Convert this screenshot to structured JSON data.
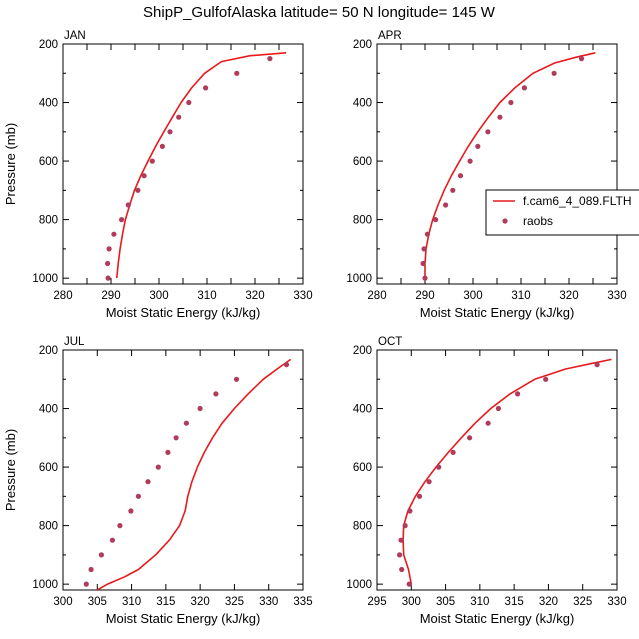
{
  "figure": {
    "title": "ShipP_GulfofAlaska  latitude= 50 N longitude= 145 W",
    "ylabel": "Pressure (mb)",
    "xlabel": "Moist Static Energy (kJ/kg)"
  },
  "colors": {
    "model_line": "#e8191c",
    "obs_dot": "#b13b5a"
  },
  "legend": {
    "model_label": "f.cam6_4_089.FLTH",
    "obs_label": "raobs"
  },
  "chart_data": [
    {
      "type": "line",
      "panel_label": "JAN",
      "xlabel": "Moist Static Energy (kJ/kg)",
      "ylabel": "Pressure (mb)",
      "xlim": [
        280,
        330
      ],
      "ylim": [
        1020,
        200
      ],
      "xticks": [
        280,
        285,
        290,
        295,
        300,
        305,
        310,
        315,
        320,
        325,
        330
      ],
      "xtick_labels": [
        "280",
        "",
        "290",
        "",
        "300",
        "",
        "310",
        "",
        "320",
        "",
        "330"
      ],
      "yticks": [
        200,
        400,
        600,
        800,
        1000
      ],
      "y_minor_step": 100,
      "series": [
        {
          "name": "f.cam6_4_089.FLTH",
          "kind": "line",
          "points": [
            [
              291.2,
              1000
            ],
            [
              291.5,
              950
            ],
            [
              291.9,
              900
            ],
            [
              292.4,
              850
            ],
            [
              293.0,
              800
            ],
            [
              293.9,
              750
            ],
            [
              294.9,
              700
            ],
            [
              296.2,
              650
            ],
            [
              297.7,
              600
            ],
            [
              299.3,
              550
            ],
            [
              301.0,
              500
            ],
            [
              302.8,
              450
            ],
            [
              304.6,
              400
            ],
            [
              306.8,
              350
            ],
            [
              309.5,
              300
            ],
            [
              313.0,
              260
            ],
            [
              319.0,
              240
            ],
            [
              326.5,
              230
            ]
          ]
        },
        {
          "name": "raobs",
          "kind": "scatter",
          "points": [
            [
              289.4,
              1000
            ],
            [
              289.3,
              950
            ],
            [
              289.6,
              900
            ],
            [
              290.6,
              850
            ],
            [
              292.2,
              800
            ],
            [
              293.6,
              750
            ],
            [
              295.6,
              700
            ],
            [
              296.9,
              650
            ],
            [
              298.6,
              600
            ],
            [
              300.7,
              550
            ],
            [
              302.3,
              500
            ],
            [
              304.1,
              450
            ],
            [
              306.2,
              400
            ],
            [
              309.7,
              350
            ],
            [
              316.2,
              300
            ],
            [
              323.1,
              250
            ]
          ]
        }
      ]
    },
    {
      "type": "line",
      "panel_label": "APR",
      "xlabel": "Moist Static Energy (kJ/kg)",
      "ylabel": "",
      "xlim": [
        280,
        330
      ],
      "ylim": [
        1020,
        200
      ],
      "xticks": [
        280,
        285,
        290,
        295,
        300,
        305,
        310,
        315,
        320,
        325,
        330
      ],
      "xtick_labels": [
        "280",
        "",
        "290",
        "",
        "300",
        "",
        "310",
        "",
        "320",
        "",
        "330"
      ],
      "yticks": [
        200,
        400,
        600,
        800,
        1000
      ],
      "y_minor_step": 100,
      "series": [
        {
          "name": "f.cam6_4_089.FLTH",
          "kind": "line",
          "points": [
            [
              290.0,
              1000
            ],
            [
              290.0,
              950
            ],
            [
              290.2,
              900
            ],
            [
              290.8,
              850
            ],
            [
              291.6,
              800
            ],
            [
              292.7,
              750
            ],
            [
              294.0,
              700
            ],
            [
              295.5,
              650
            ],
            [
              297.2,
              600
            ],
            [
              299.0,
              550
            ],
            [
              301.0,
              500
            ],
            [
              303.2,
              450
            ],
            [
              305.6,
              400
            ],
            [
              308.7,
              350
            ],
            [
              312.5,
              300
            ],
            [
              317.0,
              265
            ],
            [
              321.5,
              245
            ],
            [
              325.5,
              230
            ]
          ]
        },
        {
          "name": "raobs",
          "kind": "scatter",
          "points": [
            [
              290.0,
              1000
            ],
            [
              289.6,
              950
            ],
            [
              289.8,
              900
            ],
            [
              290.5,
              850
            ],
            [
              292.2,
              800
            ],
            [
              294.3,
              750
            ],
            [
              295.8,
              700
            ],
            [
              297.4,
              650
            ],
            [
              299.4,
              600
            ],
            [
              301.0,
              550
            ],
            [
              303.1,
              500
            ],
            [
              305.6,
              450
            ],
            [
              307.9,
              400
            ],
            [
              310.7,
              350
            ],
            [
              316.9,
              300
            ],
            [
              322.6,
              250
            ]
          ]
        }
      ]
    },
    {
      "type": "line",
      "panel_label": "JUL",
      "xlabel": "Moist Static Energy (kJ/kg)",
      "ylabel": "Pressure (mb)",
      "xlim": [
        300,
        335
      ],
      "ylim": [
        1020,
        200
      ],
      "xticks": [
        300,
        305,
        310,
        315,
        320,
        325,
        330,
        335
      ],
      "xtick_labels": [
        "300",
        "305",
        "310",
        "315",
        "320",
        "325",
        "330",
        "335"
      ],
      "yticks": [
        200,
        400,
        600,
        800,
        1000
      ],
      "y_minor_step": 100,
      "series": [
        {
          "name": "f.cam6_4_089.FLTH",
          "kind": "line",
          "points": [
            [
              305.0,
              1020
            ],
            [
              306.5,
              1000
            ],
            [
              309.0,
              975
            ],
            [
              311.0,
              950
            ],
            [
              313.5,
              900
            ],
            [
              315.5,
              850
            ],
            [
              317.0,
              800
            ],
            [
              317.8,
              750
            ],
            [
              318.2,
              700
            ],
            [
              318.8,
              650
            ],
            [
              319.6,
              600
            ],
            [
              320.6,
              550
            ],
            [
              321.8,
              500
            ],
            [
              323.2,
              450
            ],
            [
              325.0,
              400
            ],
            [
              327.0,
              350
            ],
            [
              329.2,
              300
            ],
            [
              331.5,
              260
            ],
            [
              333.2,
              232
            ]
          ]
        },
        {
          "name": "raobs",
          "kind": "scatter",
          "points": [
            [
              303.4,
              1000
            ],
            [
              304.1,
              950
            ],
            [
              305.6,
              900
            ],
            [
              307.2,
              850
            ],
            [
              308.3,
              800
            ],
            [
              309.9,
              750
            ],
            [
              311.0,
              700
            ],
            [
              312.4,
              650
            ],
            [
              313.9,
              600
            ],
            [
              315.3,
              550
            ],
            [
              316.5,
              500
            ],
            [
              318.0,
              450
            ],
            [
              320.0,
              400
            ],
            [
              322.3,
              350
            ],
            [
              325.3,
              300
            ],
            [
              332.6,
              250
            ]
          ]
        }
      ]
    },
    {
      "type": "line",
      "panel_label": "OCT",
      "xlabel": "Moist Static Energy (kJ/kg)",
      "ylabel": "",
      "xlim": [
        295,
        330
      ],
      "ylim": [
        1020,
        200
      ],
      "xticks": [
        295,
        300,
        305,
        310,
        315,
        320,
        325,
        330
      ],
      "xtick_labels": [
        "295",
        "300",
        "305",
        "310",
        "315",
        "320",
        "325",
        "330"
      ],
      "yticks": [
        200,
        400,
        600,
        800,
        1000
      ],
      "y_minor_step": 100,
      "series": [
        {
          "name": "f.cam6_4_089.FLTH",
          "kind": "line",
          "points": [
            [
              300.0,
              1000
            ],
            [
              299.6,
              950
            ],
            [
              298.9,
              900
            ],
            [
              298.8,
              850
            ],
            [
              298.9,
              800
            ],
            [
              299.5,
              750
            ],
            [
              300.6,
              700
            ],
            [
              302.0,
              650
            ],
            [
              303.6,
              600
            ],
            [
              305.4,
              550
            ],
            [
              307.3,
              500
            ],
            [
              309.3,
              450
            ],
            [
              311.6,
              400
            ],
            [
              314.4,
              350
            ],
            [
              318.0,
              300
            ],
            [
              322.5,
              265
            ],
            [
              326.5,
              245
            ],
            [
              329.2,
              232
            ]
          ]
        },
        {
          "name": "raobs",
          "kind": "scatter",
          "points": [
            [
              299.7,
              1000
            ],
            [
              298.6,
              950
            ],
            [
              298.3,
              900
            ],
            [
              298.5,
              850
            ],
            [
              299.1,
              800
            ],
            [
              299.8,
              750
            ],
            [
              301.2,
              700
            ],
            [
              302.6,
              650
            ],
            [
              304.0,
              600
            ],
            [
              306.1,
              550
            ],
            [
              308.5,
              500
            ],
            [
              311.2,
              450
            ],
            [
              312.7,
              400
            ],
            [
              315.5,
              350
            ],
            [
              319.6,
              300
            ],
            [
              327.1,
              250
            ]
          ]
        }
      ]
    }
  ]
}
